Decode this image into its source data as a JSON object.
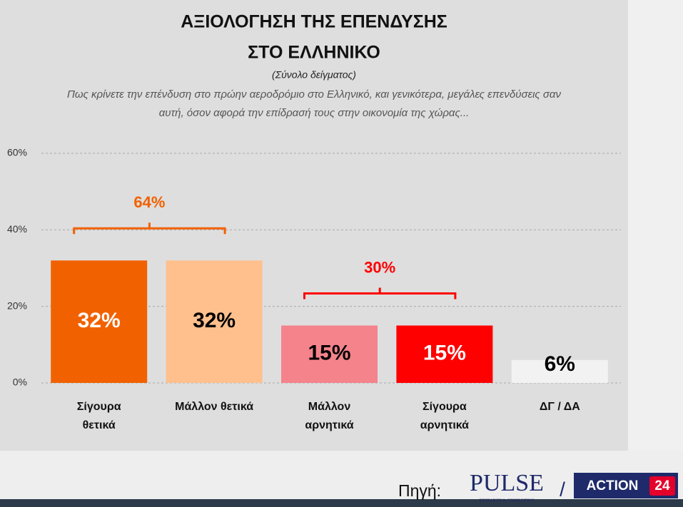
{
  "chart_data": {
    "type": "bar",
    "title": [
      "ΑΞΙΟΛΟΓΗΣΗ ΤΗΣ ΕΠΕΝΔΥΣΗΣ",
      "ΣΤΟ ΕΛΛΗΝΙΚΟ"
    ],
    "subtitle": "(Σύνολο δείγματος)",
    "question": "Πως κρίνετε την επένδυση στο πρώην αεροδρόμιο στο Ελληνικό, και γενικότερα, μεγάλες επενδύσεις σαν αυτή, όσον αφορά την επίδρασή τους στην οικονομία της χώρας...",
    "categories": [
      "Σίγουρα θετικά",
      "Μάλλον θετικά",
      "Μάλλον αρνητικά",
      "Σίγουρα αρνητικά",
      "ΔΓ / ΔΑ"
    ],
    "values": [
      32,
      32,
      15,
      15,
      6
    ],
    "value_labels": [
      "32%",
      "32%",
      "15%",
      "15%",
      "6%"
    ],
    "colors": [
      "#f26100",
      "#ffc08e",
      "#f4838b",
      "#ff0000",
      "#f2f2f2"
    ],
    "value_label_colors": [
      "#ffffff",
      "#000000",
      "#000000",
      "#ffffff",
      "#000000"
    ],
    "ylim": [
      0,
      60
    ],
    "yticks": [
      {
        "value": 0,
        "label": "0%"
      },
      {
        "value": 20,
        "label": "20%"
      },
      {
        "value": 40,
        "label": "40%"
      },
      {
        "value": 60,
        "label": "60%"
      }
    ],
    "grid": true,
    "annotations": [
      {
        "value": 64,
        "label": "64%",
        "color": "#f26100"
      },
      {
        "value": 30,
        "label": "30%",
        "color": "#ff0000"
      }
    ]
  },
  "footer": {
    "source_label": "Πηγή:",
    "logo1": "PULSE",
    "logo1_sub": "RESEARCH & CONSULTING",
    "separator": "/",
    "logo2": "ACTION",
    "logo2_num": "24"
  }
}
